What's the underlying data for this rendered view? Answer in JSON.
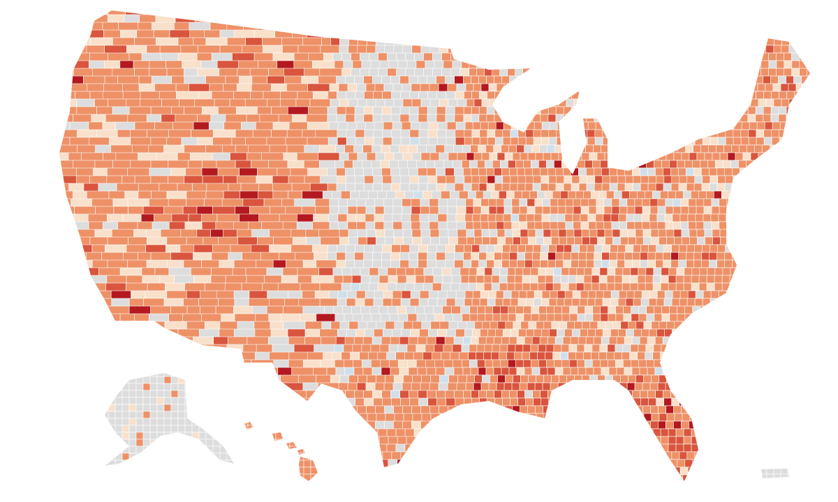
{
  "map": {
    "palette": [
      "#f9e0cb",
      "#ee9167",
      "#d9553d",
      "#b3191f",
      "#dddddd",
      "#cfe0ec"
    ]
  }
}
